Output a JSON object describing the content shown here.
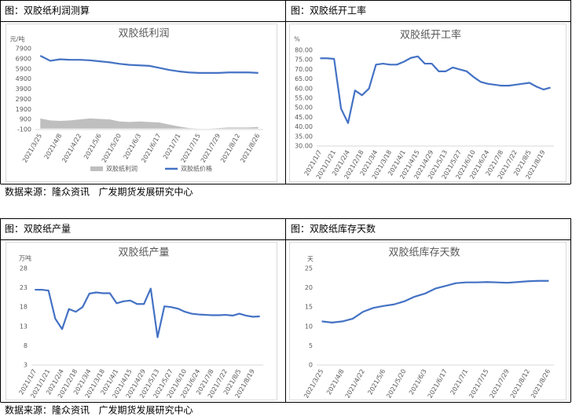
{
  "panels": [
    {
      "header": "图：双胶纸利润测算"
    },
    {
      "header": "图：双胶纸开工率"
    },
    {
      "header": "图：双胶纸产量"
    },
    {
      "header": "图：双胶纸库存天数"
    }
  ],
  "sources": [
    "数据来源：隆众资讯   广发期货发展研究中心",
    "数据来源：隆众资讯   广发期货发展研究中心"
  ],
  "chart_data": [
    {
      "type": "line",
      "title": "双胶纸利润",
      "y_label": "元/吨",
      "categories": [
        "2021/3/25",
        null,
        "2021/4/8",
        null,
        "2021/4/22",
        null,
        "2021/5/6",
        null,
        "2021/5/20",
        null,
        "2021/6/3",
        null,
        "2021/6/17",
        null,
        "2021/7/1",
        null,
        "2021/7/15",
        null,
        "2021/7/29",
        null,
        "2021/8/12",
        null,
        "2021/8/26"
      ],
      "series": [
        {
          "name": "双胶纸利润",
          "type": "area",
          "color": "#bfbfbf",
          "values": [
            1000,
            800,
            750,
            800,
            900,
            1000,
            950,
            900,
            700,
            650,
            700,
            650,
            600,
            400,
            200,
            50,
            0,
            0,
            50,
            100,
            100,
            100,
            150
          ]
        },
        {
          "name": "双胶纸价格",
          "type": "line",
          "color": "#4472c4",
          "values": [
            7200,
            6700,
            6850,
            6800,
            6800,
            6750,
            6650,
            6550,
            6400,
            6300,
            6250,
            6200,
            6000,
            5800,
            5650,
            5550,
            5500,
            5500,
            5500,
            5550,
            5550,
            5550,
            5500
          ]
        }
      ],
      "ylim": [
        -100,
        7900
      ],
      "yticks": [
        -100,
        900,
        1900,
        2900,
        3900,
        4900,
        5900,
        6900,
        7900
      ],
      "grid": false,
      "legend": "bottom"
    },
    {
      "type": "line",
      "title": "双胶纸开工率",
      "y_label": "%",
      "categories": [
        "2021/1/7",
        null,
        "2021/1/21",
        null,
        "2021/2/4",
        null,
        "2021/2/18",
        null,
        "2021/3/4",
        null,
        "2021/3/18",
        null,
        "2021/4/1",
        null,
        "2021/4/15",
        null,
        "2021/4/29",
        null,
        "2021/5/13",
        null,
        "2021/5/27",
        null,
        "2021/6/10",
        null,
        "2021/6/24",
        null,
        "2021/7/8",
        null,
        "2021/7/22",
        null,
        "2021/8/5",
        null,
        "2021/8/19",
        null
      ],
      "series": [
        {
          "name": "双胶纸开工率",
          "type": "line",
          "color": "#4472c4",
          "values": [
            75.8,
            75.8,
            75.5,
            49.5,
            42,
            59,
            56.5,
            60,
            72.5,
            73,
            72.5,
            72.5,
            74,
            76,
            76.8,
            73,
            73,
            69,
            69,
            71,
            70,
            69,
            66,
            63.5,
            62.5,
            62,
            61.5,
            61.5,
            62,
            62.5,
            63,
            61,
            59.5,
            60.5
          ]
        }
      ],
      "ylim": [
        30,
        80
      ],
      "yticks": [
        {
          "value": 30,
          "label": "30.00"
        },
        {
          "value": 35,
          "label": "35.00"
        },
        {
          "value": 40,
          "label": "40.00"
        },
        {
          "value": 45,
          "label": "45.00"
        },
        {
          "value": 50,
          "label": "50.00"
        },
        {
          "value": 55,
          "label": "55.00"
        },
        {
          "value": 60,
          "label": "60.00"
        },
        {
          "value": 65,
          "label": "65.00"
        },
        {
          "value": 70,
          "label": "70.00"
        },
        {
          "value": 75,
          "label": "75.00"
        },
        {
          "value": 80,
          "label": "80.00"
        }
      ],
      "grid": false
    },
    {
      "type": "line",
      "title": "双胶纸产量",
      "y_label": "万吨",
      "categories": [
        "2021/1/7",
        null,
        "2021/1/21",
        null,
        "2021/2/4",
        null,
        "2021/2/18",
        null,
        "2021/3/4",
        null,
        "2021/3/18",
        null,
        "2021/4/1",
        null,
        "2021/4/15",
        null,
        "2021/4/29",
        null,
        "2021/5/13",
        null,
        "2021/5/27",
        null,
        "2021/6/10",
        null,
        "2021/6/24",
        null,
        "2021/7/8",
        null,
        "2021/7/22",
        null,
        "2021/8/5",
        null,
        "2021/8/19",
        null
      ],
      "series": [
        {
          "name": "双胶纸产量",
          "type": "line",
          "color": "#4472c4",
          "values": [
            22.5,
            22.5,
            22.3,
            15,
            12.3,
            17.5,
            16.8,
            18,
            21.5,
            21.8,
            21.6,
            21.6,
            19,
            19.5,
            19.7,
            18.8,
            18.8,
            22.8,
            10.2,
            18.2,
            18,
            17.6,
            16.8,
            16.3,
            16.1,
            16,
            15.9,
            15.9,
            16,
            15.8,
            16.3,
            15.8,
            15.5,
            15.6
          ]
        }
      ],
      "ylim": [
        3,
        28
      ],
      "yticks": [
        3,
        8,
        13,
        18,
        23,
        28
      ],
      "grid": false
    },
    {
      "type": "line",
      "title": "双胶纸库存天数",
      "y_label": "天",
      "categories": [
        "2021/3/25",
        null,
        "2021/4/8",
        null,
        "2021/4/22",
        null,
        "2021/5/6",
        null,
        "2021/5/20",
        null,
        "2021/6/3",
        null,
        "2021/6/17",
        null,
        "2021/7/1",
        null,
        "2021/7/15",
        null,
        "2021/7/29",
        null,
        "2021/8/12",
        null,
        "2021/8/26"
      ],
      "series": [
        {
          "name": "双胶纸库存天数",
          "type": "line",
          "color": "#4472c4",
          "values": [
            11.3,
            11,
            11.3,
            12,
            13.8,
            14.8,
            15.3,
            15.7,
            16.5,
            17.7,
            18.5,
            19.8,
            20.5,
            21.2,
            21.4,
            21.4,
            21.5,
            21.4,
            21.3,
            21.5,
            21.7,
            21.8,
            21.8
          ]
        }
      ],
      "ylim": [
        0,
        25
      ],
      "yticks": [
        0,
        5,
        10,
        15,
        20,
        25
      ],
      "grid": false
    }
  ]
}
